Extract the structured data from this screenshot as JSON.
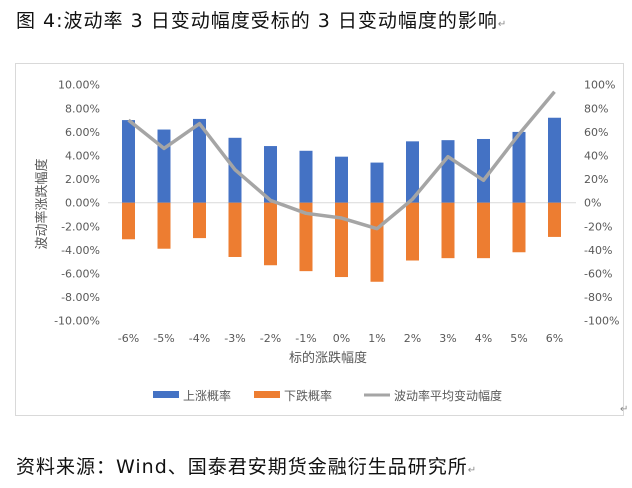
{
  "figure": {
    "title": "图 4:波动率 3 日变动幅度受标的 3 日变动幅度的影响",
    "source": "资料来源：Wind、国泰君安期货金融衍生品研究所",
    "paragraph_mark": "↵"
  },
  "colors": {
    "up_bar": "#4472C4",
    "down_bar": "#ED7D31",
    "line": "#A5A5A5",
    "axis_text": "#595959",
    "zero_line": "#D9D9D9"
  },
  "chart_data": {
    "type": "bar",
    "title": "",
    "xlabel": "标的涨跌幅度",
    "ylabel": "波动率涨跌幅度",
    "categories": [
      "-6%",
      "-5%",
      "-4%",
      "-3%",
      "-2%",
      "-1%",
      "0%",
      "1%",
      "2%",
      "3%",
      "4%",
      "5%",
      "6%"
    ],
    "series": [
      {
        "name": "上涨概率",
        "type": "bar",
        "axis": "left",
        "color": "#4472C4",
        "values": [
          0.07,
          0.062,
          0.071,
          0.055,
          0.048,
          0.044,
          0.039,
          0.034,
          0.052,
          0.053,
          0.054,
          0.06,
          0.072
        ]
      },
      {
        "name": "下跌概率",
        "type": "bar",
        "axis": "left",
        "color": "#ED7D31",
        "values": [
          -0.031,
          -0.039,
          -0.03,
          -0.046,
          -0.053,
          -0.058,
          -0.063,
          -0.067,
          -0.049,
          -0.047,
          -0.047,
          -0.042,
          -0.029
        ]
      },
      {
        "name": "波动率平均变动幅度",
        "type": "line",
        "axis": "right",
        "color": "#A5A5A5",
        "values": [
          0.7,
          0.46,
          0.67,
          0.28,
          0.02,
          -0.09,
          -0.13,
          -0.22,
          0.03,
          0.39,
          0.19,
          0.58,
          0.94
        ]
      }
    ],
    "left_axis": {
      "ylim": [
        -0.1,
        0.1
      ],
      "ticks": [
        "10.00%",
        "8.00%",
        "6.00%",
        "4.00%",
        "2.00%",
        "0.00%",
        "-2.00%",
        "-4.00%",
        "-6.00%",
        "-8.00%",
        "-10.00%"
      ]
    },
    "right_axis": {
      "ylim": [
        -1.0,
        1.0
      ],
      "ticks": [
        "100%",
        "80%",
        "60%",
        "40%",
        "20%",
        "0%",
        "-20%",
        "-40%",
        "-60%",
        "-80%",
        "-100%"
      ]
    },
    "grid": false,
    "legend_position": "bottom",
    "legend": [
      {
        "label": "上涨概率",
        "kind": "bar",
        "color": "#4472C4"
      },
      {
        "label": "下跌概率",
        "kind": "bar",
        "color": "#ED7D31"
      },
      {
        "label": "波动率平均变动幅度",
        "kind": "line",
        "color": "#A5A5A5"
      }
    ]
  }
}
